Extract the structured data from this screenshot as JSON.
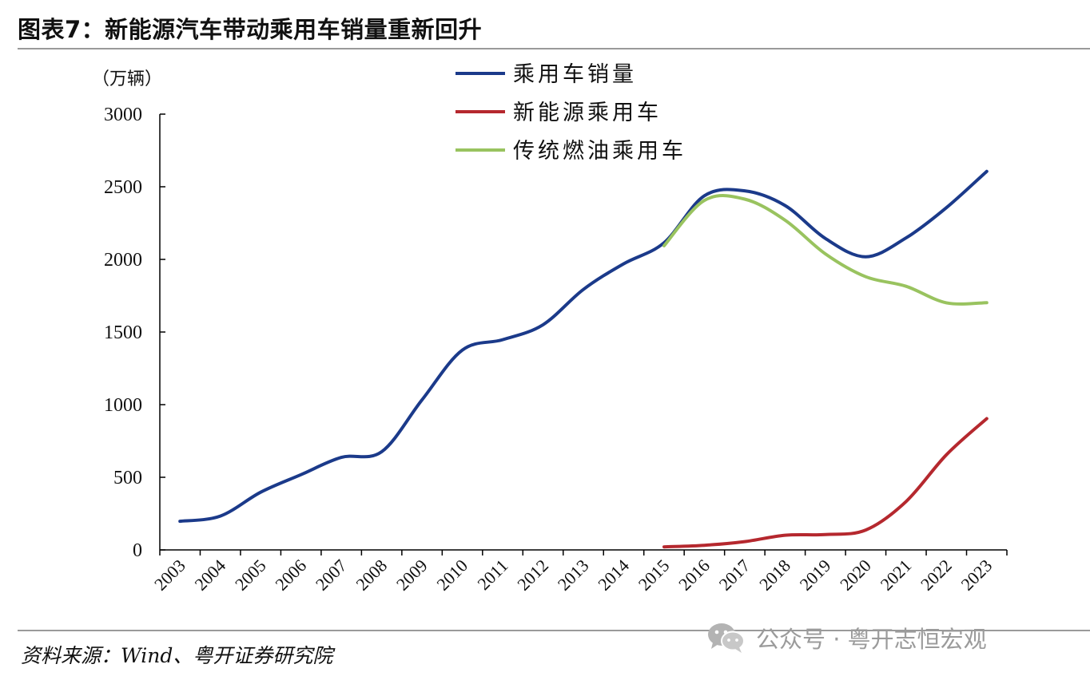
{
  "header": {
    "title": "图表7：新能源汽车带动乘用车销量重新回升"
  },
  "footer": {
    "source": "资料来源：Wind、粤开证券研究院",
    "watermark_text": "公众号 · 粤开志恒宏观",
    "watermark_icon": "wechat-icon"
  },
  "colors": {
    "total": "#1b3a8a",
    "nev": "#b5282e",
    "ice": "#99c35f",
    "axis": "#000000",
    "rule": "#9a9a9a",
    "watermark": "#9b9b9b"
  },
  "chart_data": {
    "type": "line",
    "unit_label": "（万辆）",
    "categories": [
      "2003",
      "2004",
      "2005",
      "2006",
      "2007",
      "2008",
      "2009",
      "2010",
      "2011",
      "2012",
      "2013",
      "2014",
      "2015",
      "2016",
      "2017",
      "2018",
      "2019",
      "2020",
      "2021",
      "2022",
      "2023"
    ],
    "ylim": [
      0,
      3000
    ],
    "yticks": [
      0,
      500,
      1000,
      1500,
      2000,
      2500,
      3000
    ],
    "grid": false,
    "legend_position": "top-center",
    "series": [
      {
        "name": "乘用车销量",
        "key": "total",
        "values": [
          197,
          233,
          397,
          518,
          637,
          676,
          1033,
          1376,
          1447,
          1550,
          1793,
          1970,
          2115,
          2438,
          2472,
          2371,
          2144,
          2018,
          2148,
          2356,
          2606
        ]
      },
      {
        "name": "新能源乘用车",
        "key": "nev",
        "values": [
          null,
          null,
          null,
          null,
          null,
          null,
          null,
          null,
          null,
          null,
          null,
          null,
          21,
          32,
          57,
          101,
          106,
          137,
          333,
          655,
          904
        ]
      },
      {
        "name": "传统燃油乘用车",
        "key": "ice",
        "values": [
          null,
          null,
          null,
          null,
          null,
          null,
          null,
          null,
          null,
          null,
          null,
          null,
          2094,
          2406,
          2415,
          2270,
          2038,
          1881,
          1815,
          1701,
          1702
        ]
      }
    ]
  }
}
